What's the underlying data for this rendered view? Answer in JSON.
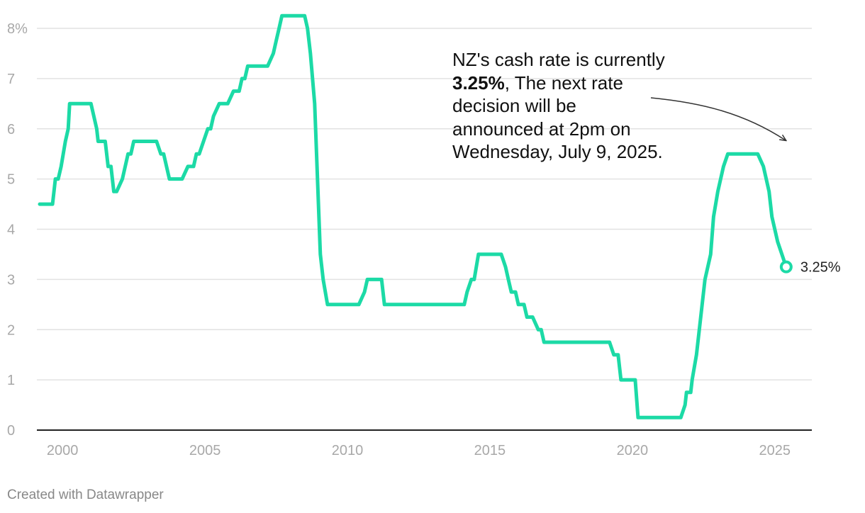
{
  "chart_data": {
    "type": "line",
    "title": "",
    "xlabel": "",
    "ylabel": "",
    "xlim": [
      1999.1,
      2026.3
    ],
    "ylim": [
      0,
      8
    ],
    "grid": true,
    "x_ticks": [
      2000,
      2005,
      2010,
      2015,
      2020,
      2025
    ],
    "x_tick_labels": [
      "2000",
      "2005",
      "2010",
      "2015",
      "2020",
      "2025"
    ],
    "y_ticks": [
      0,
      1,
      2,
      3,
      4,
      5,
      6,
      7,
      8
    ],
    "y_tick_labels": [
      "0",
      "1",
      "2",
      "3",
      "4",
      "5",
      "6",
      "7",
      "8%"
    ],
    "line_color": "#1cdaa6",
    "series": [
      {
        "x": [
          1999.2,
          1999.65,
          1999.75,
          1999.85,
          1999.95,
          2000.1,
          2000.2,
          2000.25,
          2000.4,
          2001.0,
          2001.2,
          2001.25,
          2001.5,
          2001.6,
          2001.7,
          2001.8,
          2001.9,
          2002.1,
          2002.2,
          2002.3,
          2002.4,
          2002.5,
          2002.7,
          2003.3,
          2003.45,
          2003.55,
          2003.75,
          2004.2,
          2004.4,
          2004.6,
          2004.7,
          2004.8,
          2005.1,
          2005.2,
          2005.3,
          2005.5,
          2005.8,
          2006.0,
          2006.2,
          2006.3,
          2006.4,
          2006.5,
          2006.8,
          2007.2,
          2007.4,
          2007.5,
          2007.6,
          2007.7,
          2008.5,
          2008.6,
          2008.7,
          2008.85,
          2008.95,
          2009.05,
          2009.15,
          2009.3,
          2010.4,
          2010.6,
          2010.7,
          2011.2,
          2011.3,
          2014.1,
          2014.2,
          2014.35,
          2014.45,
          2014.6,
          2015.4,
          2015.55,
          2015.65,
          2015.75,
          2015.9,
          2016.0,
          2016.2,
          2016.3,
          2016.5,
          2016.7,
          2016.8,
          2016.9,
          2017.0,
          2019.2,
          2019.35,
          2019.5,
          2019.6,
          2020.1,
          2020.2,
          2021.7,
          2021.85,
          2021.9,
          2022.05,
          2022.1,
          2022.25,
          2022.35,
          2022.55,
          2022.75,
          2022.85,
          2023.0,
          2023.2,
          2023.35,
          2024.4,
          2024.6,
          2024.8,
          2024.9,
          2025.1,
          2025.4
        ],
        "y": [
          4.5,
          4.5,
          5.0,
          5.0,
          5.25,
          5.75,
          6.0,
          6.5,
          6.5,
          6.5,
          6.0,
          5.75,
          5.75,
          5.25,
          5.25,
          4.75,
          4.75,
          5.0,
          5.25,
          5.5,
          5.5,
          5.75,
          5.75,
          5.75,
          5.5,
          5.5,
          5.0,
          5.0,
          5.25,
          5.25,
          5.5,
          5.5,
          6.0,
          6.0,
          6.25,
          6.5,
          6.5,
          6.75,
          6.75,
          7.0,
          7.0,
          7.25,
          7.25,
          7.25,
          7.5,
          7.75,
          8.0,
          8.25,
          8.25,
          8.0,
          7.5,
          6.5,
          5.0,
          3.5,
          3.0,
          2.5,
          2.5,
          2.75,
          3.0,
          3.0,
          2.5,
          2.5,
          2.75,
          3.0,
          3.0,
          3.5,
          3.5,
          3.25,
          3.0,
          2.75,
          2.75,
          2.5,
          2.5,
          2.25,
          2.25,
          2.0,
          2.0,
          1.75,
          1.75,
          1.75,
          1.5,
          1.5,
          1.0,
          1.0,
          0.25,
          0.25,
          0.5,
          0.75,
          0.75,
          1.0,
          1.5,
          2.0,
          3.0,
          3.5,
          4.25,
          4.75,
          5.25,
          5.5,
          5.5,
          5.25,
          4.75,
          4.25,
          3.75,
          3.25
        ]
      }
    ],
    "end_point": {
      "x": 2025.4,
      "y": 3.25,
      "label": "3.25%"
    }
  },
  "annotation": {
    "text_before": "NZ's cash rate is currently ",
    "text_bold": "3.25%",
    "text_after": ", The next rate decision will be announced at 2pm on Wednesday, July 9, 2025."
  },
  "footer": {
    "credit": "Created with Datawrapper"
  }
}
